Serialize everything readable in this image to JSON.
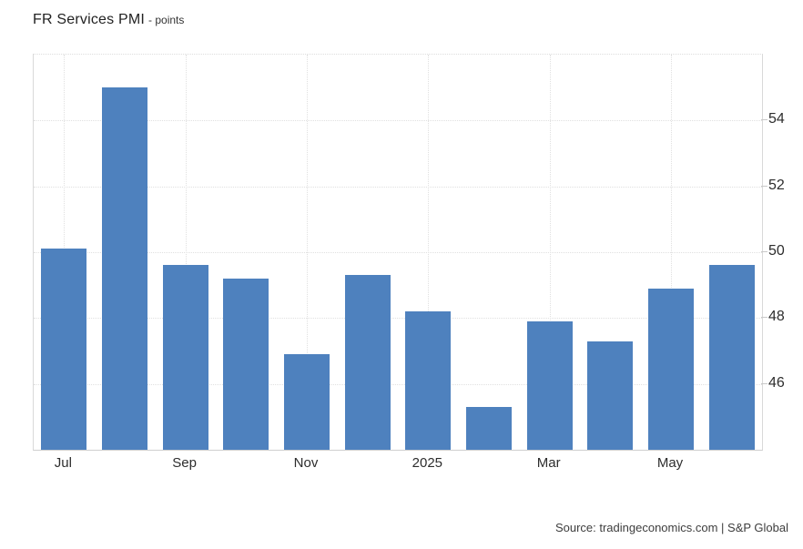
{
  "title": {
    "main": "FR Services PMI",
    "suffix": "- points"
  },
  "source": {
    "text": "Source: tradingeconomics.com | S&P Global"
  },
  "colors": {
    "bar": "#4e81be",
    "grid": "#e0e0e0",
    "border": "#d9d9d9",
    "text": "#2d2d2d",
    "background": "#ffffff"
  },
  "chart_data": {
    "type": "bar",
    "title": "FR Services PMI",
    "unit_label": "points",
    "categories": [
      "Jul 2024",
      "Aug 2024",
      "Sep 2024",
      "Oct 2024",
      "Nov 2024",
      "Dec 2024",
      "Jan 2025",
      "Feb 2025",
      "Mar 2025",
      "Apr 2025",
      "May 2025",
      "Jun 2025"
    ],
    "values": [
      50.1,
      55.0,
      49.6,
      49.2,
      46.9,
      49.3,
      48.2,
      45.3,
      47.9,
      47.3,
      48.9,
      49.6
    ],
    "x_tick_labels": [
      {
        "index": 0,
        "label": "Jul"
      },
      {
        "index": 2,
        "label": "Sep"
      },
      {
        "index": 4,
        "label": "Nov"
      },
      {
        "index": 6,
        "label": "2025"
      },
      {
        "index": 8,
        "label": "Mar"
      },
      {
        "index": 10,
        "label": "May"
      }
    ],
    "y_ticks": [
      46,
      48,
      50,
      52,
      54
    ],
    "ylim": [
      44,
      56
    ],
    "grid": true,
    "legend_position": "none",
    "y_axis_side": "right"
  }
}
